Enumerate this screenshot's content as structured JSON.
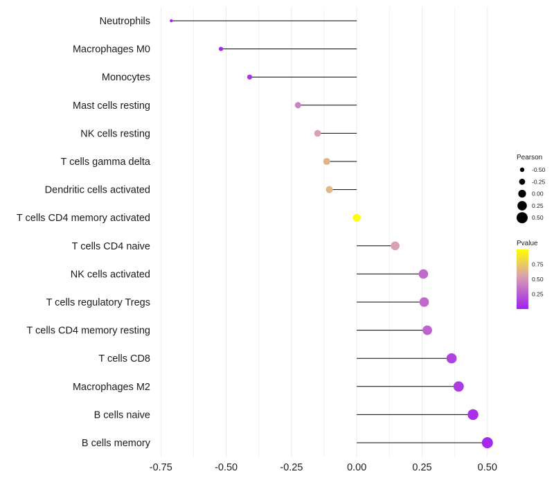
{
  "chart_data": {
    "type": "lollipop",
    "xlim": [
      -0.75,
      0.55
    ],
    "x_ticks": [
      "-0.75",
      "-0.50",
      "-0.25",
      "0.00",
      "0.25",
      "0.50"
    ],
    "x_tick_values": [
      -0.75,
      -0.5,
      -0.25,
      0.0,
      0.25,
      0.5
    ],
    "baseline": 0,
    "stem_color": "#000000",
    "points": [
      {
        "cell": "Neutrophils",
        "pearson": -0.71,
        "pvalue": 0.001
      },
      {
        "cell": "Macrophages M0",
        "pearson": -0.52,
        "pvalue": 0.04
      },
      {
        "cell": "Monocytes",
        "pearson": -0.41,
        "pvalue": 0.08
      },
      {
        "cell": "Mast cells resting",
        "pearson": -0.225,
        "pvalue": 0.42
      },
      {
        "cell": "NK cells resting",
        "pearson": -0.15,
        "pvalue": 0.55
      },
      {
        "cell": "T cells gamma delta",
        "pearson": -0.115,
        "pvalue": 0.64
      },
      {
        "cell": "Dendritic cells activated",
        "pearson": -0.105,
        "pvalue": 0.67
      },
      {
        "cell": "T cells CD4 memory activated",
        "pearson": 0.0,
        "pvalue": 0.99
      },
      {
        "cell": "T cells CD4 naive",
        "pearson": 0.147,
        "pvalue": 0.55
      },
      {
        "cell": "NK cells activated",
        "pearson": 0.255,
        "pvalue": 0.32
      },
      {
        "cell": "T cells regulatory  Tregs",
        "pearson": 0.258,
        "pvalue": 0.31
      },
      {
        "cell": "T cells CD4 memory resting",
        "pearson": 0.27,
        "pvalue": 0.29
      },
      {
        "cell": "T cells CD8",
        "pearson": 0.363,
        "pvalue": 0.15
      },
      {
        "cell": "Macrophages M2",
        "pearson": 0.39,
        "pvalue": 0.12
      },
      {
        "cell": "B cells naive",
        "pearson": 0.445,
        "pvalue": 0.07
      },
      {
        "cell": "B cells memory",
        "pearson": 0.5,
        "pvalue": 0.04
      }
    ],
    "legend_size": {
      "title": "Pearson",
      "labels": [
        "-0.50",
        "-0.25",
        "0.00",
        "0.25",
        "0.50"
      ],
      "values": [
        -0.5,
        -0.25,
        0.0,
        0.25,
        0.5
      ]
    },
    "legend_color": {
      "title": "Pvalue",
      "labels": [
        "0.75",
        "0.50",
        "0.25"
      ],
      "values": [
        0.75,
        0.5,
        0.25
      ],
      "low_color": "#a020f0",
      "mid_color": "#d9a0b0",
      "high_color": "#ffff00"
    },
    "grid_color": "#ebebeb"
  }
}
